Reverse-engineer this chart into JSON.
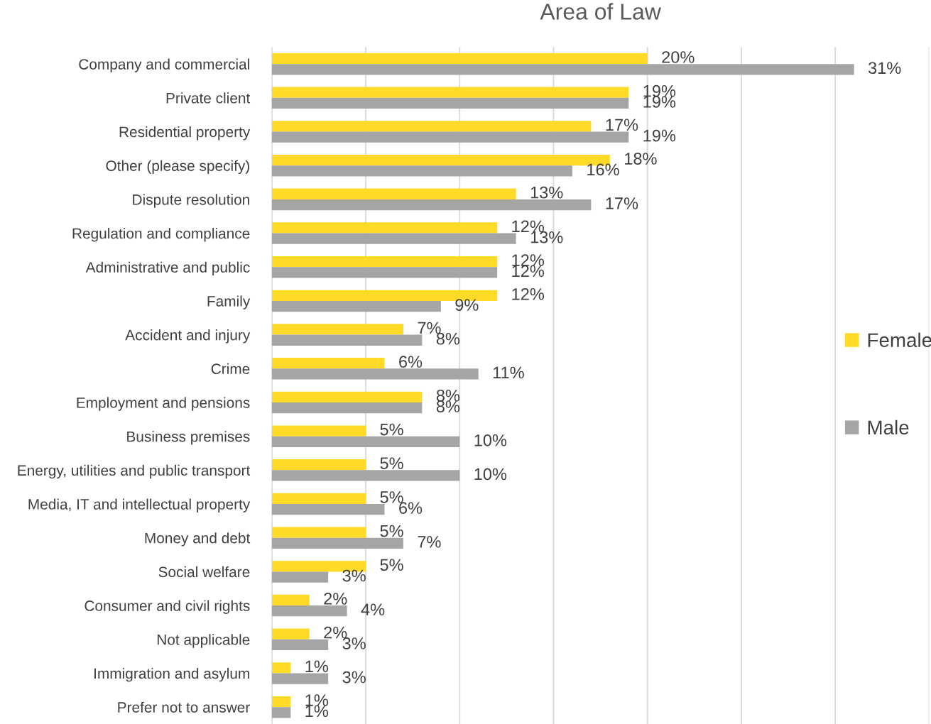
{
  "chart_data": {
    "type": "bar",
    "orientation": "horizontal",
    "title": "Area of Law",
    "categories": [
      "Company and commercial",
      "Private client",
      "Residential property",
      "Other (please specify)",
      "Dispute resolution",
      "Regulation and compliance",
      "Administrative and public",
      "Family",
      "Accident and injury",
      "Crime",
      "Employment and pensions",
      "Business premises",
      "Energy, utilities and public transport",
      "Media, IT and intellectual property",
      "Money and debt",
      "Social welfare",
      "Consumer and civil rights",
      "Not applicable",
      "Immigration and asylum",
      "Prefer not to answer"
    ],
    "series": [
      {
        "name": "Female",
        "color": "#ffda26",
        "values": [
          20,
          19,
          17,
          18,
          13,
          12,
          12,
          12,
          7,
          6,
          8,
          5,
          5,
          5,
          5,
          5,
          2,
          2,
          1,
          1
        ],
        "value_labels": [
          "20%",
          "19%",
          "17%",
          "18%",
          "13%",
          "12%",
          "12%",
          "12%",
          "7%",
          "6%",
          "8%",
          "5%",
          "5%",
          "5%",
          "5%",
          "5%",
          "2%",
          "2%",
          "1%",
          "1%"
        ]
      },
      {
        "name": "Male",
        "color": "#a5a5a5",
        "values": [
          31,
          19,
          19,
          16,
          17,
          13,
          12,
          9,
          8,
          11,
          8,
          10,
          10,
          6,
          7,
          3,
          4,
          3,
          3,
          1
        ],
        "value_labels": [
          "31%",
          "19%",
          "19%",
          "16%",
          "17%",
          "13%",
          "12%",
          "9%",
          "8%",
          "11%",
          "8%",
          "10%",
          "10%",
          "6%",
          "7%",
          "3%",
          "4%",
          "3%",
          "3%",
          "1%"
        ]
      }
    ],
    "xlim": [
      0,
      35
    ],
    "xticks": [
      {
        "value": 0,
        "label": null
      },
      {
        "value": 5,
        "label": null
      },
      {
        "value": 10,
        "label": null
      },
      {
        "value": 15,
        "label": null
      },
      {
        "value": 20,
        "label": null
      },
      {
        "value": 25,
        "label": null
      },
      {
        "value": 30,
        "label": null
      },
      {
        "value": 35,
        "label": null
      }
    ],
    "tick_labels": "y",
    "grid": "x",
    "legend": "right"
  }
}
